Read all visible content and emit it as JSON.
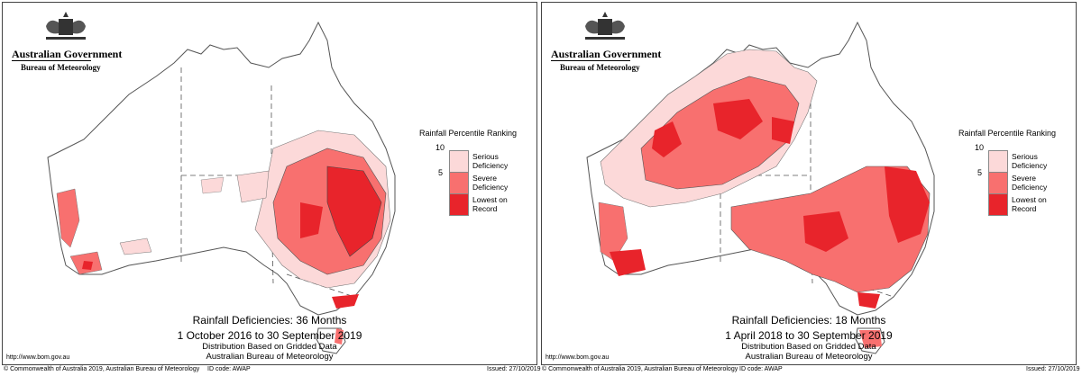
{
  "legend": {
    "title": "Rainfall Percentile Ranking",
    "ticks": [
      "10",
      "5"
    ],
    "items": [
      {
        "label_line1": "Serious",
        "label_line2": "Deficiency",
        "color": "#fcd9d9"
      },
      {
        "label_line1": "Severe",
        "label_line2": "Deficiency",
        "color": "#f8706f"
      },
      {
        "label_line1": "Lowest on",
        "label_line2": "Record",
        "color": "#e8242b"
      }
    ]
  },
  "header": {
    "gov": "Australian Government",
    "bureau": "Bureau of Meteorology"
  },
  "maps": [
    {
      "title": "Rainfall Deficiencies: 36 Months",
      "period": "1 October 2016 to 30 September 2019",
      "note1": "Distribution Based on Gridded Data",
      "note2": "Australian Bureau of Meteorology",
      "url": "http://www.bom.gov.au",
      "copyright": "© Commonwealth of Australia 2019, Australian Bureau of Meteorology",
      "id_code": "ID code: AWAP",
      "issued": "Issued: 27/10/2019"
    },
    {
      "title": "Rainfall Deficiencies: 18 Months",
      "period": "1 April 2018 to 30 September 2019",
      "note1": "Distribution Based on Gridded Data",
      "note2": "Australian Bureau of Meteorology",
      "url": "http://www.bom.gov.au",
      "copyright": "© Commonwealth of Australia 2019, Australian Bureau of Meteorology",
      "id_code": "ID code: AWAP",
      "issued": "Issued: 27/10/2019"
    }
  ]
}
